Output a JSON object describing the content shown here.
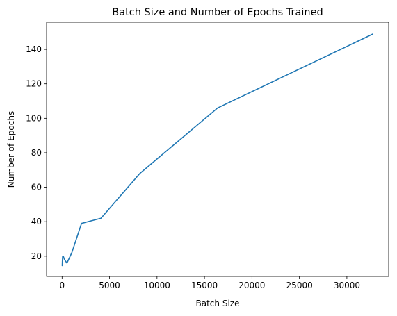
{
  "chart_data": {
    "type": "line",
    "title": "Batch Size and Number of Epochs Trained",
    "xlabel": "Batch Size",
    "ylabel": "Number of Epochs",
    "xlim": [
      -1633,
      34401
    ],
    "ylim": [
      8.25,
      155.75
    ],
    "x_ticks": [
      0,
      5000,
      10000,
      15000,
      20000,
      25000,
      30000
    ],
    "y_ticks": [
      20,
      40,
      60,
      80,
      100,
      120,
      140
    ],
    "grid": false,
    "series": [
      {
        "color": "#1f77b4",
        "x": [
          8,
          16,
          32,
          64,
          128,
          256,
          512,
          1024,
          2048,
          4096,
          8192,
          16384,
          32768
        ],
        "y": [
          15,
          14.5,
          17,
          20,
          20,
          18,
          16,
          22,
          39,
          42,
          68,
          106,
          149
        ]
      }
    ]
  }
}
